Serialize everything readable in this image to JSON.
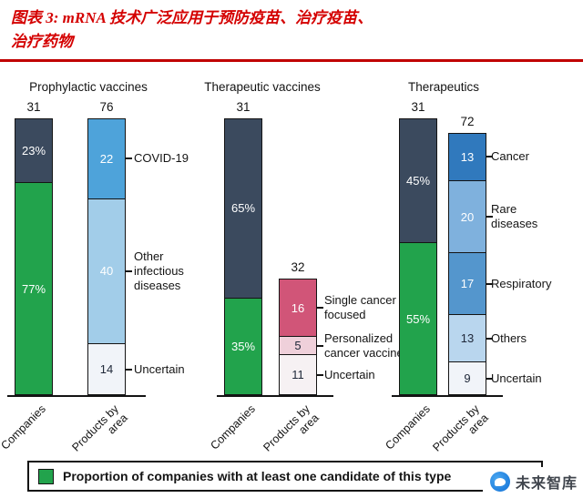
{
  "title": {
    "line1": "图表 3: mRNA 技术广泛应用于预防疫苗、治疗疫苗、",
    "line2": "治疗药物"
  },
  "legend": {
    "text": "Proportion of companies with at least one candidate of this type"
  },
  "watermark": {
    "text": "未来智库"
  },
  "colors": {
    "title_red": "#d40000",
    "rule_red": "#c00000",
    "companies_top": "#3b4a5e",
    "companies_green": "#22a34c",
    "axis_black": "#141414"
  },
  "chart_data": {
    "type": "bar",
    "subtype": "stacked-vertical",
    "legend_position": "bottom",
    "grid": false,
    "panels": [
      {
        "title": "Prophylactic vaccines",
        "bars": [
          {
            "kind": "companies",
            "total": "31",
            "unit": "percent",
            "axis_label_lines": [
              "Companies"
            ],
            "segments": [
              {
                "label": "23%",
                "value": 23,
                "color": "#3b4a5e",
                "text_color": "#ffffff",
                "side_label": ""
              },
              {
                "label": "77%",
                "value": 77,
                "color": "#22a34c",
                "text_color": "#ffffff",
                "side_label": ""
              }
            ]
          },
          {
            "kind": "products",
            "total": "76",
            "unit": "count",
            "axis_label_lines": [
              "Products by",
              "area"
            ],
            "segments": [
              {
                "label": "22",
                "value": 22,
                "color": "#4ea3da",
                "text_color": "#ffffff",
                "side_label": "COVID-19"
              },
              {
                "label": "40",
                "value": 40,
                "color": "#a2cde9",
                "text_color": "#ffffff",
                "side_label": "Other infectious diseases"
              },
              {
                "label": "14",
                "value": 14,
                "color": "#f1f4f9",
                "text_color": "#20293a",
                "side_label": "Uncertain"
              }
            ]
          }
        ]
      },
      {
        "title": "Therapeutic vaccines",
        "bars": [
          {
            "kind": "companies",
            "total": "31",
            "unit": "percent",
            "axis_label_lines": [
              "Companies"
            ],
            "segments": [
              {
                "label": "65%",
                "value": 65,
                "color": "#3b4a5e",
                "text_color": "#ffffff",
                "side_label": ""
              },
              {
                "label": "35%",
                "value": 35,
                "color": "#22a34c",
                "text_color": "#ffffff",
                "side_label": ""
              }
            ]
          },
          {
            "kind": "products",
            "total": "32",
            "unit": "count",
            "axis_label_lines": [
              "Products by",
              "area"
            ],
            "segments": [
              {
                "label": "16",
                "value": 16,
                "color": "#d15578",
                "text_color": "#ffffff",
                "side_label": "Single cancer focused"
              },
              {
                "label": "5",
                "value": 5,
                "color": "#efd0da",
                "text_color": "#20293a",
                "side_label": "Personalized cancer vaccine"
              },
              {
                "label": "11",
                "value": 11,
                "color": "#f6f1f3",
                "text_color": "#20293a",
                "side_label": "Uncertain"
              }
            ]
          }
        ]
      },
      {
        "title": "Therapeutics",
        "bars": [
          {
            "kind": "companies",
            "total": "31",
            "unit": "percent",
            "axis_label_lines": [
              "Companies"
            ],
            "segments": [
              {
                "label": "45%",
                "value": 45,
                "color": "#3b4a5e",
                "text_color": "#ffffff",
                "side_label": ""
              },
              {
                "label": "55%",
                "value": 55,
                "color": "#22a34c",
                "text_color": "#ffffff",
                "side_label": ""
              }
            ]
          },
          {
            "kind": "products",
            "total": "72",
            "unit": "count",
            "axis_label_lines": [
              "Products by",
              "area"
            ],
            "segments": [
              {
                "label": "13",
                "value": 13,
                "color": "#3079bd",
                "text_color": "#ffffff",
                "side_label": "Cancer"
              },
              {
                "label": "20",
                "value": 20,
                "color": "#7fb1dd",
                "text_color": "#ffffff",
                "side_label": "Rare diseases"
              },
              {
                "label": "17",
                "value": 17,
                "color": "#5496cd",
                "text_color": "#ffffff",
                "side_label": "Respiratory"
              },
              {
                "label": "13",
                "value": 13,
                "color": "#b9d6ee",
                "text_color": "#20293a",
                "side_label": "Others"
              },
              {
                "label": "9",
                "value": 9,
                "color": "#f1f4f9",
                "text_color": "#20293a",
                "side_label": "Uncertain"
              }
            ]
          }
        ]
      }
    ]
  }
}
